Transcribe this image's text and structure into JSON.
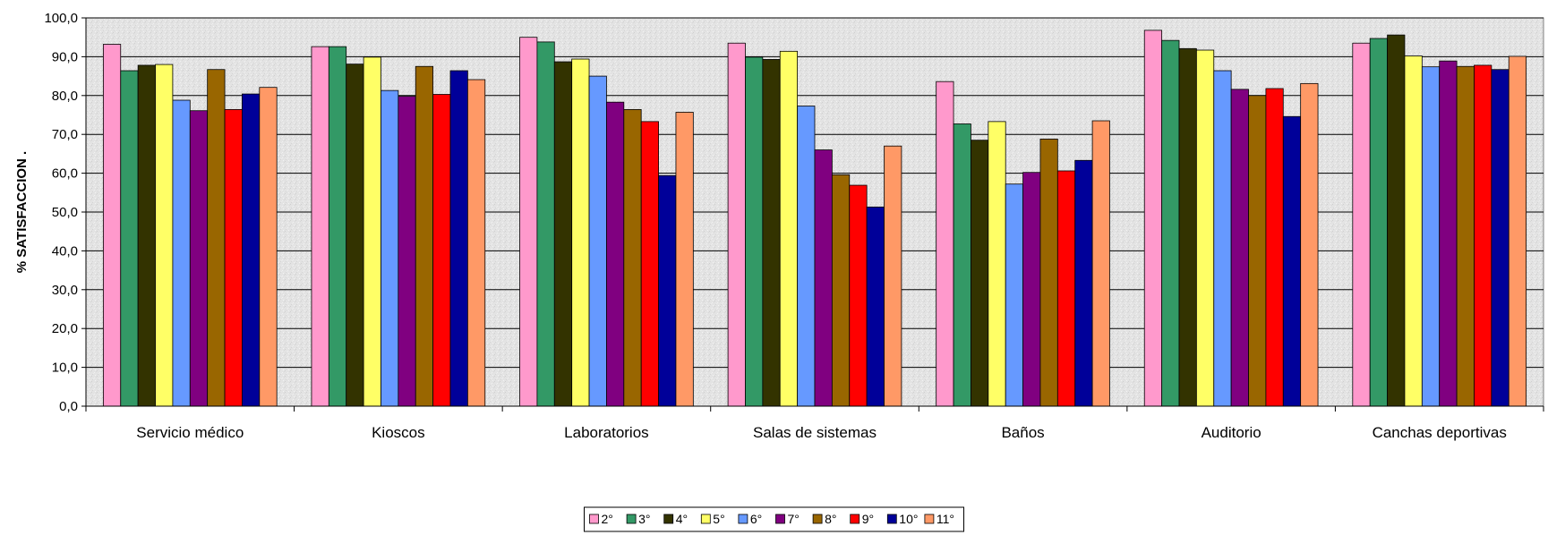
{
  "chart_data": {
    "type": "bar",
    "title": "",
    "xlabel": "",
    "ylabel": "% SATISFACCION   .",
    "ylim": [
      0,
      100
    ],
    "yticks": [
      0,
      10,
      20,
      30,
      40,
      50,
      60,
      70,
      80,
      90,
      100
    ],
    "ytick_labels": [
      "0,0",
      "10,0",
      "20,0",
      "30,0",
      "40,0",
      "50,0",
      "60,0",
      "70,0",
      "80,0",
      "90,0",
      "100,0"
    ],
    "grid": true,
    "legend_position": "bottom",
    "categories": [
      "Servicio médico",
      "Kioscos",
      "Laboratorios",
      "Salas de sistemas",
      "Baños",
      "Auditorio",
      "Canchas deportivas"
    ],
    "series": [
      {
        "name": "2°",
        "color": "#FF99CC",
        "values": [
          93.2,
          92.6,
          95.0,
          93.5,
          83.6,
          96.8,
          93.5
        ]
      },
      {
        "name": "3°",
        "color": "#339966",
        "values": [
          86.4,
          92.6,
          93.8,
          89.9,
          72.7,
          94.2,
          94.7
        ]
      },
      {
        "name": "4°",
        "color": "#333300",
        "values": [
          87.8,
          88.1,
          88.7,
          89.3,
          68.5,
          92.1,
          95.6
        ]
      },
      {
        "name": "5°",
        "color": "#FFFF66",
        "values": [
          88.0,
          89.9,
          89.4,
          91.4,
          73.3,
          91.7,
          90.2
        ]
      },
      {
        "name": "6°",
        "color": "#6699FF",
        "values": [
          78.8,
          81.3,
          85.0,
          77.3,
          57.2,
          86.4,
          87.4
        ]
      },
      {
        "name": "7°",
        "color": "#800080",
        "values": [
          76.1,
          79.8,
          78.3,
          66.0,
          60.2,
          81.6,
          88.9
        ]
      },
      {
        "name": "8°",
        "color": "#996600",
        "values": [
          86.7,
          87.5,
          76.4,
          59.6,
          68.8,
          80.0,
          87.5
        ]
      },
      {
        "name": "9°",
        "color": "#FF0000",
        "values": [
          76.4,
          80.3,
          73.3,
          56.9,
          60.6,
          81.8,
          87.8
        ]
      },
      {
        "name": "10°",
        "color": "#000099",
        "values": [
          80.4,
          86.4,
          59.4,
          51.3,
          63.3,
          74.6,
          86.7
        ]
      },
      {
        "name": "11°",
        "color": "#FF9966",
        "values": [
          82.1,
          84.1,
          75.7,
          67.0,
          73.5,
          83.1,
          90.1
        ]
      }
    ]
  }
}
